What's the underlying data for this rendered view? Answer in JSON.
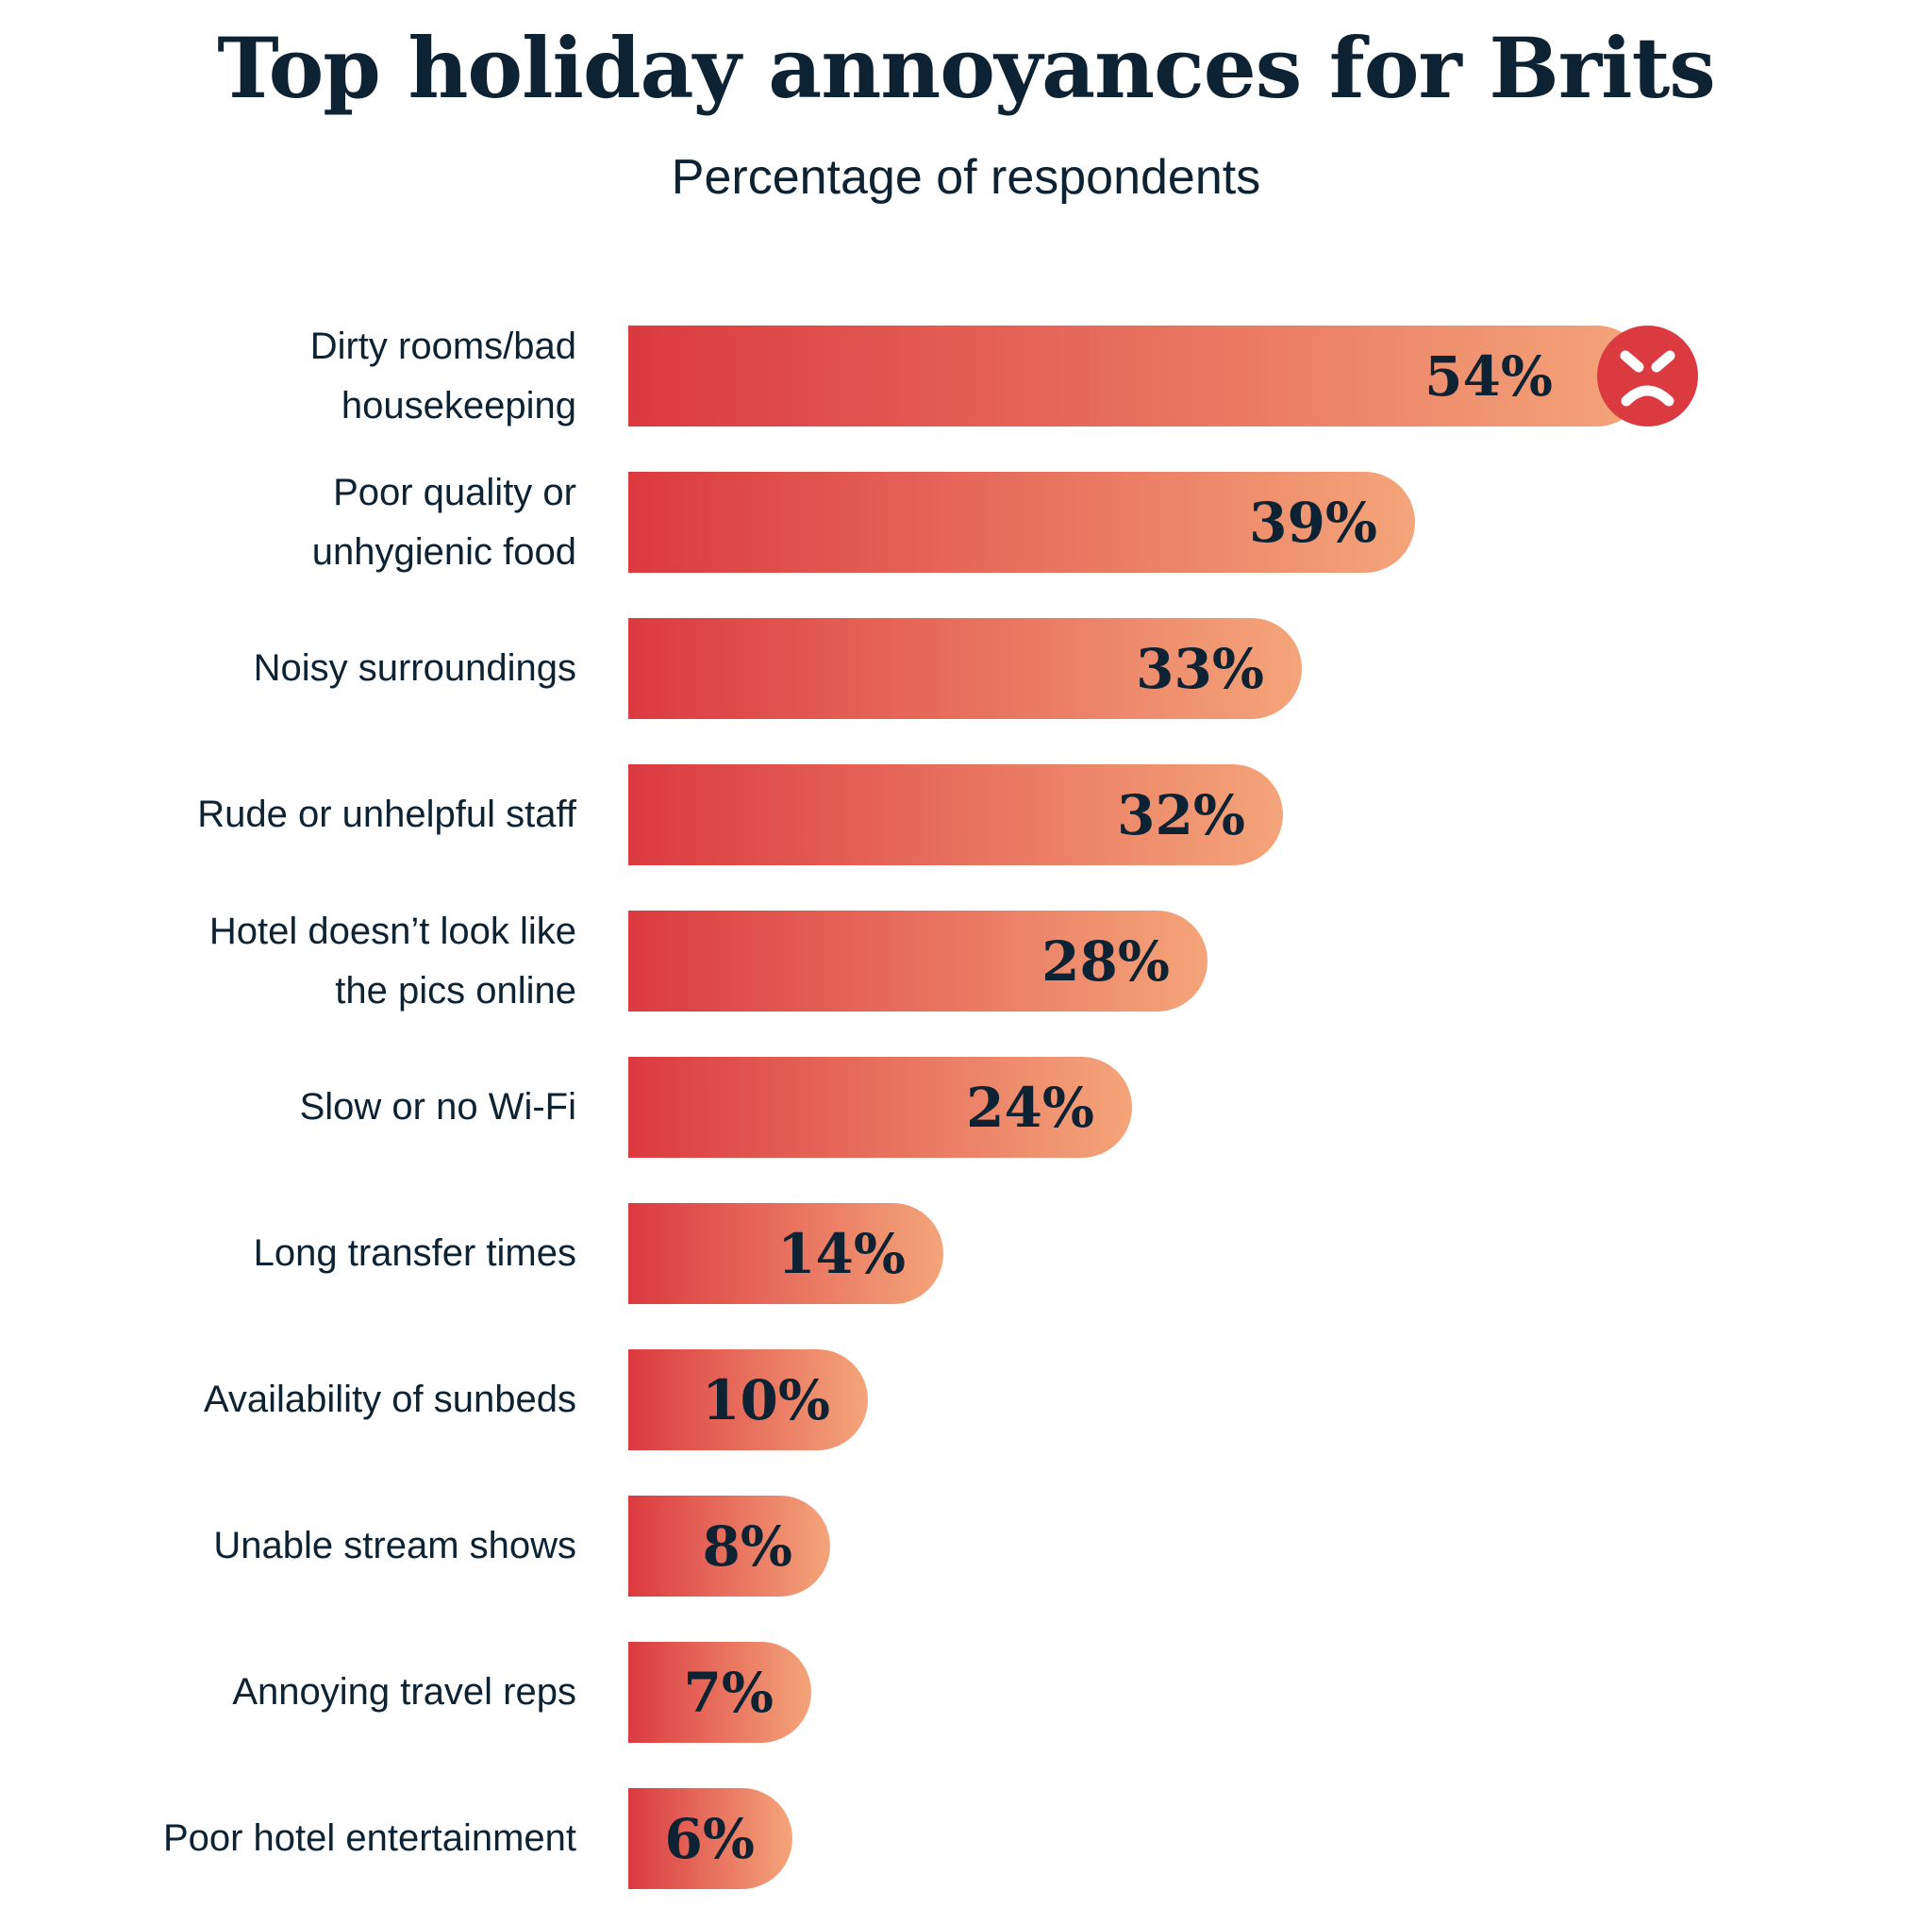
{
  "chart_data": {
    "type": "bar",
    "orientation": "horizontal",
    "title": "Top holiday annoyances for Brits",
    "subtitle": "Percentage of respondents",
    "categories": [
      "Dirty rooms/bad housekeeping",
      "Poor quality or unhygienic food",
      "Noisy surroundings",
      "Rude or unhelpful staff",
      "Hotel doesn’t look like the pics online",
      "Slow or no Wi-Fi",
      "Long transfer times",
      "Availability of sunbeds",
      "Unable stream shows",
      "Annoying travel reps",
      "Poor hotel entertainment"
    ],
    "label_lines": [
      [
        "Dirty rooms/bad",
        "housekeeping"
      ],
      [
        "Poor quality or",
        "unhygienic food"
      ],
      [
        "Noisy surroundings"
      ],
      [
        "Rude or unhelpful staff"
      ],
      [
        "Hotel doesn’t look like",
        "the pics online"
      ],
      [
        "Slow or no Wi-Fi"
      ],
      [
        "Long transfer times"
      ],
      [
        "Availability of sunbeds"
      ],
      [
        "Unable stream shows"
      ],
      [
        "Annoying travel reps"
      ],
      [
        "Poor hotel entertainment"
      ]
    ],
    "values": [
      54,
      39,
      33,
      32,
      28,
      24,
      14,
      10,
      8,
      7,
      6
    ],
    "value_labels": [
      "54%",
      "39%",
      "33%",
      "32%",
      "28%",
      "24%",
      "14%",
      "10%",
      "8%",
      "7%",
      "6%"
    ],
    "grid": false,
    "gradient_colors": [
      "#db3a40",
      "#f4a57a"
    ],
    "icon": "angry-face-icon",
    "icon_color": "#db3a40"
  }
}
